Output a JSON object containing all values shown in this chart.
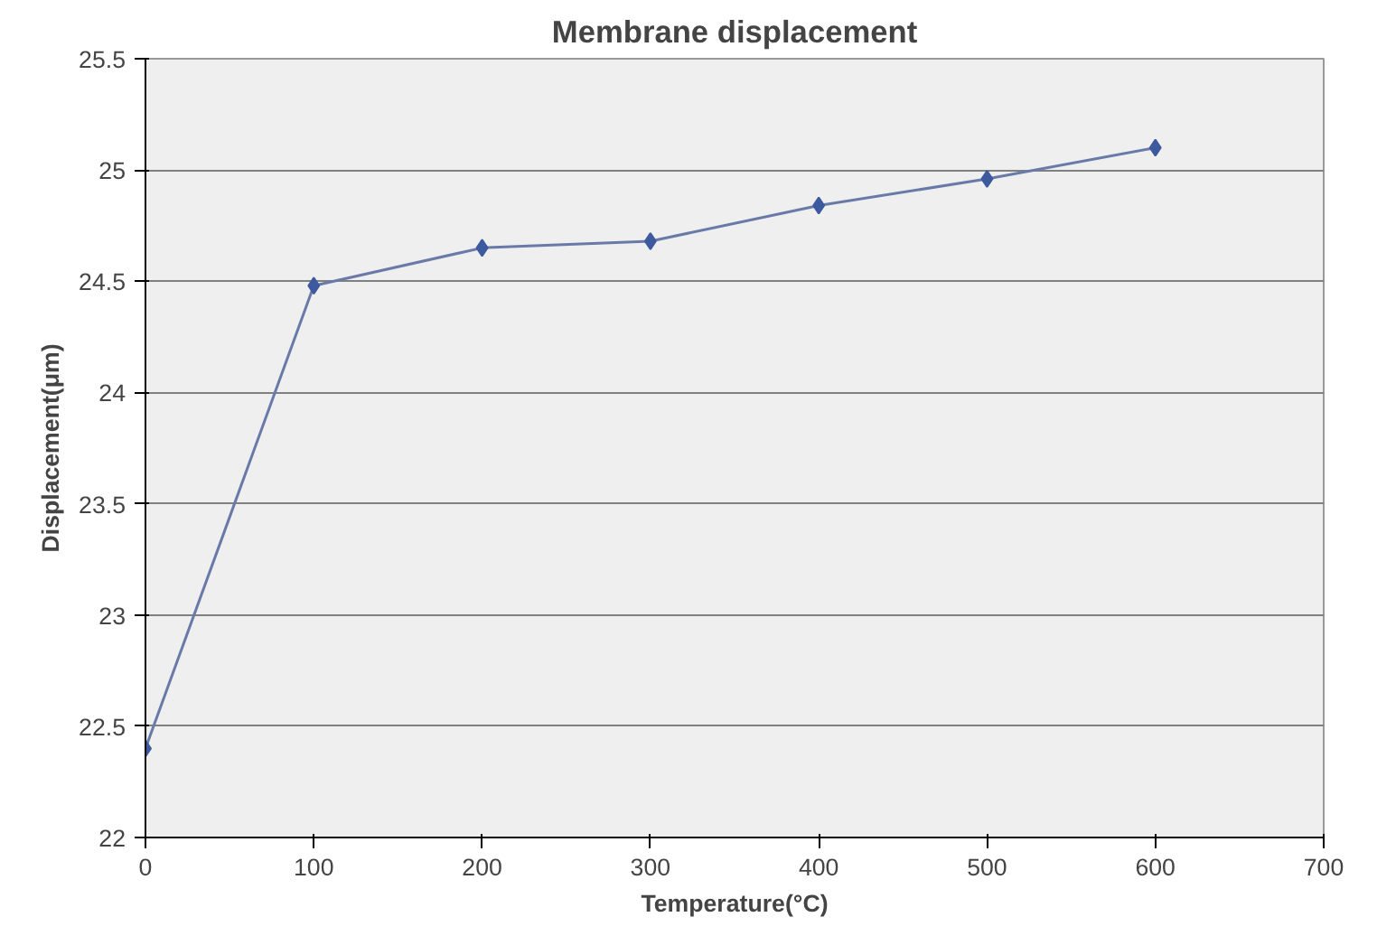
{
  "chart_data": {
    "type": "line",
    "title": "Membrane displacement",
    "xlabel": "Temperature(°C)",
    "ylabel": "Displacement(μm)",
    "x": [
      0,
      100,
      200,
      300,
      400,
      500,
      600
    ],
    "series": [
      {
        "color": "#3d5a9e",
        "values": [
          22.4,
          24.48,
          24.65,
          24.68,
          24.84,
          24.96,
          25.1
        ]
      }
    ],
    "xlim": [
      0,
      700
    ],
    "xticks": [
      0,
      100,
      200,
      300,
      400,
      500,
      600,
      700
    ],
    "ylim": [
      22,
      25.5
    ],
    "yticks": [
      22,
      {
        "value": 22.5,
        "label": "22.5"
      },
      23,
      {
        "value": 23.5,
        "label": "23.5"
      },
      24,
      {
        "value": 24.5,
        "label": "24.5"
      },
      25,
      {
        "value": 25.5,
        "label": "25.5"
      }
    ],
    "grid": "y",
    "marker": "diamond",
    "line_style": "solid"
  }
}
